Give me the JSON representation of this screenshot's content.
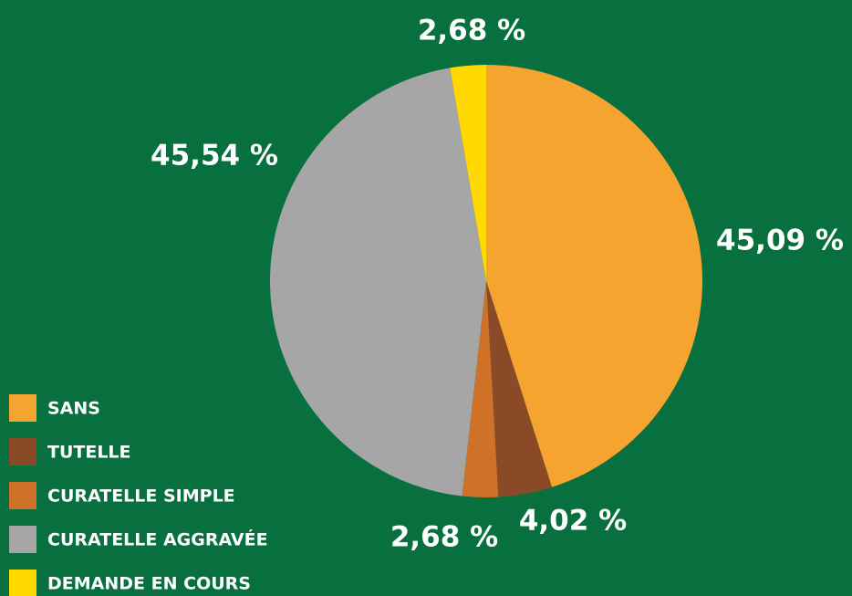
{
  "chart_data": {
    "type": "pie",
    "categories": [
      "SANS",
      "TUTELLE",
      "CURATELLE SIMPLE",
      "CURATELLE AGGRAVÉE",
      "DEMANDE EN COURS"
    ],
    "values": [
      45.09,
      4.02,
      2.68,
      45.54,
      2.68
    ],
    "value_labels": [
      "45,09 %",
      "4,02 %",
      "2,68 %",
      "45,54 %",
      "2,68 %"
    ],
    "colors": [
      "#f5a42f",
      "#8b4a27",
      "#cf7126",
      "#a6a6a6",
      "#ffd900"
    ],
    "legend": "bottom-left"
  }
}
